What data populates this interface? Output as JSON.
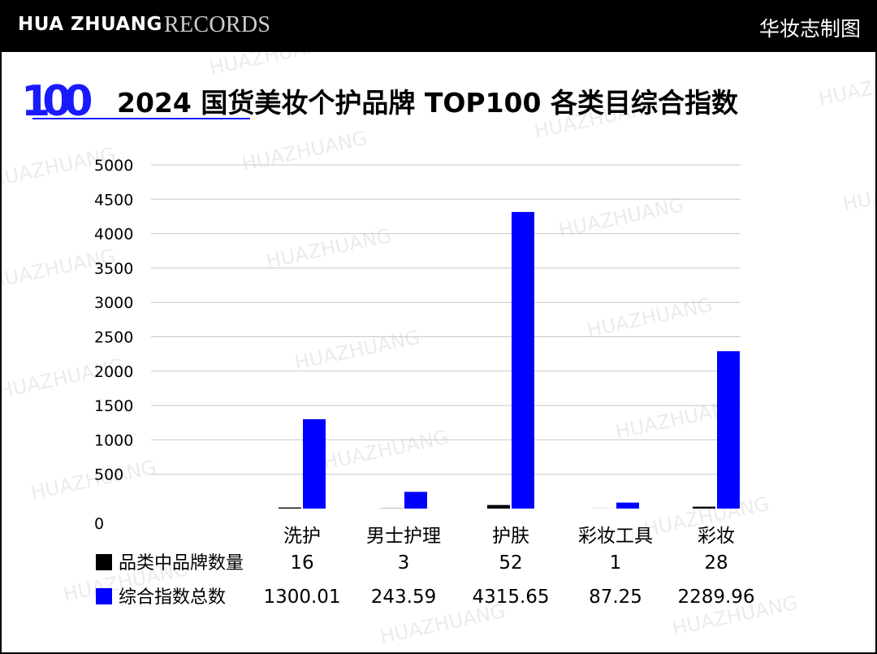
{
  "header": {
    "brand_bold": "HUA ZHUANG",
    "brand_serif": "RECORDS",
    "right_label": "华妆志制图"
  },
  "title": "2024 国货美妆个护品牌 TOP100 各类目综合指数",
  "logo": {
    "text": "100",
    "color": "#1a1aff"
  },
  "watermark_text": "HUAZHUANG",
  "colors": {
    "series_count": "#000000",
    "series_index": "#0000ff",
    "grid": "#c8c8c8"
  },
  "chart_data": {
    "type": "bar",
    "title": "2024 国货美妆个护品牌 TOP100 各类目综合指数",
    "categories": [
      "洗护",
      "男士护理",
      "护肤",
      "彩妆工具",
      "彩妆"
    ],
    "series": [
      {
        "name": "品类中品牌数量",
        "values": [
          16,
          3,
          52,
          1,
          28
        ],
        "labels": [
          "16",
          "3",
          "52",
          "1",
          "28"
        ]
      },
      {
        "name": "综合指数总数",
        "values": [
          1300.01,
          243.59,
          4315.65,
          87.25,
          2289.96
        ],
        "labels": [
          "1300.01",
          "243.59",
          "4315.65",
          "87.25",
          "2289.96"
        ]
      }
    ],
    "ylim": [
      0,
      5000
    ],
    "yticks": [
      0,
      500,
      1000,
      1500,
      2000,
      2500,
      3000,
      3500,
      4000,
      4500,
      5000
    ],
    "grid": true,
    "legend": "bottom-left data table"
  }
}
